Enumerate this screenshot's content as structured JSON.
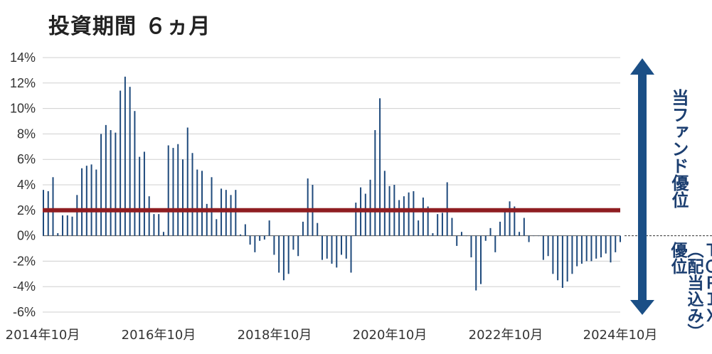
{
  "title": "投資期間 ６ヵ月",
  "annotations": {
    "fund_better": "当ファンド優位",
    "topix_better": "ＴＯＰＩＸ（配当込み）優位"
  },
  "colors": {
    "bars": "#1f4a7c",
    "reference_line": "#8f1d21",
    "arrow": "#1b4f86",
    "grid": "#cfcfcf"
  },
  "chart_data": {
    "type": "bar",
    "title": "投資期間 ６ヵ月",
    "xlabel": "",
    "ylabel": "",
    "ylim": [
      -6,
      14
    ],
    "y_ticks": [
      "14%",
      "12%",
      "10%",
      "8%",
      "6%",
      "4%",
      "2%",
      "0%",
      "-2%",
      "-4%",
      "-6%"
    ],
    "x_tick_labels": [
      "2014年10月",
      "2016年10月",
      "2018年10月",
      "2020年10月",
      "2022年10月",
      "2024年10月"
    ],
    "x_start": "2014-10",
    "x_end": "2024-10",
    "reference_line": 2,
    "grid": true,
    "series": [
      {
        "values": [
          3.6,
          3.5,
          4.6,
          0.2,
          1.6,
          1.6,
          1.5,
          3.2,
          5.3,
          5.5,
          5.6,
          5.2,
          8.0,
          8.7,
          8.3,
          8.1,
          11.4,
          12.5,
          11.7,
          9.8,
          6.2,
          6.6,
          3.1,
          1.7,
          1.7,
          0.3,
          7.1,
          6.9,
          7.2,
          6.0,
          8.5,
          6.5,
          5.2,
          5.1,
          2.5,
          4.6,
          1.3,
          3.7,
          3.6,
          3.2,
          3.6,
          0.1,
          0.9,
          -0.7,
          -1.3,
          -0.4,
          -0.3,
          1.2,
          -1.5,
          -2.9,
          -3.5,
          -3.0,
          -1.1,
          -1.6,
          1.1,
          4.5,
          4.0,
          1.0,
          -1.9,
          -1.8,
          -2.2,
          -2.5,
          -1.5,
          -1.8,
          -2.9,
          2.6,
          3.8,
          3.3,
          4.4,
          8.3,
          10.8,
          5.1,
          3.9,
          4.0,
          2.8,
          3.1,
          3.4,
          3.5,
          1.2,
          3.0,
          2.3,
          0.2,
          1.7,
          1.8,
          4.2,
          1.4,
          -0.8,
          0.3,
          0.0,
          -1.7,
          -4.3,
          -3.8,
          -0.4,
          0.6,
          -1.3,
          1.1,
          2.0,
          2.7,
          2.3,
          0.3,
          1.4,
          -0.5,
          0.0,
          0.0,
          -1.9,
          -1.6,
          -3.0,
          -3.5,
          -4.1,
          -3.6,
          -3.0,
          -2.4,
          -2.2,
          -2.0,
          -2.0,
          -1.8,
          -1.7,
          -1.4,
          -2.1,
          -1.3,
          -0.5
        ]
      }
    ]
  }
}
